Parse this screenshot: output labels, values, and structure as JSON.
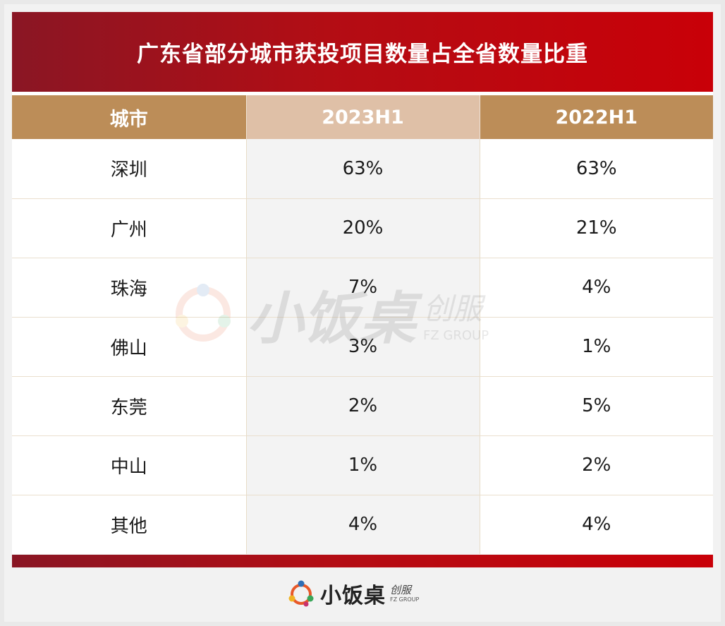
{
  "chart_data": {
    "type": "table",
    "title": "广东省部分城市获投项目数量占全省数量比重",
    "columns": [
      "城市",
      "2023H1",
      "2022H1"
    ],
    "rows": [
      {
        "city": "深圳",
        "h2023": "63%",
        "h2022": "63%"
      },
      {
        "city": "广州",
        "h2023": "20%",
        "h2022": "21%"
      },
      {
        "city": "珠海",
        "h2023": "7%",
        "h2022": "4%"
      },
      {
        "city": "佛山",
        "h2023": "3%",
        "h2022": "1%"
      },
      {
        "city": "东莞",
        "h2023": "2%",
        "h2022": "5%"
      },
      {
        "city": "中山",
        "h2023": "1%",
        "h2022": "2%"
      },
      {
        "city": "其他",
        "h2023": "4%",
        "h2022": "4%"
      }
    ]
  },
  "footer": {
    "brand": "小饭桌",
    "sub_cn": "创服",
    "sub_en": "FZ GROUP"
  },
  "watermark": {
    "brand": "小饭桌",
    "sub_cn": "创服",
    "sub_en": "FZ GROUP"
  },
  "colors": {
    "title_gradient_start": "#8a1624",
    "title_gradient_end": "#c90008",
    "header_tan": "#bc8d58",
    "header_mid": "#dfc0a7"
  }
}
